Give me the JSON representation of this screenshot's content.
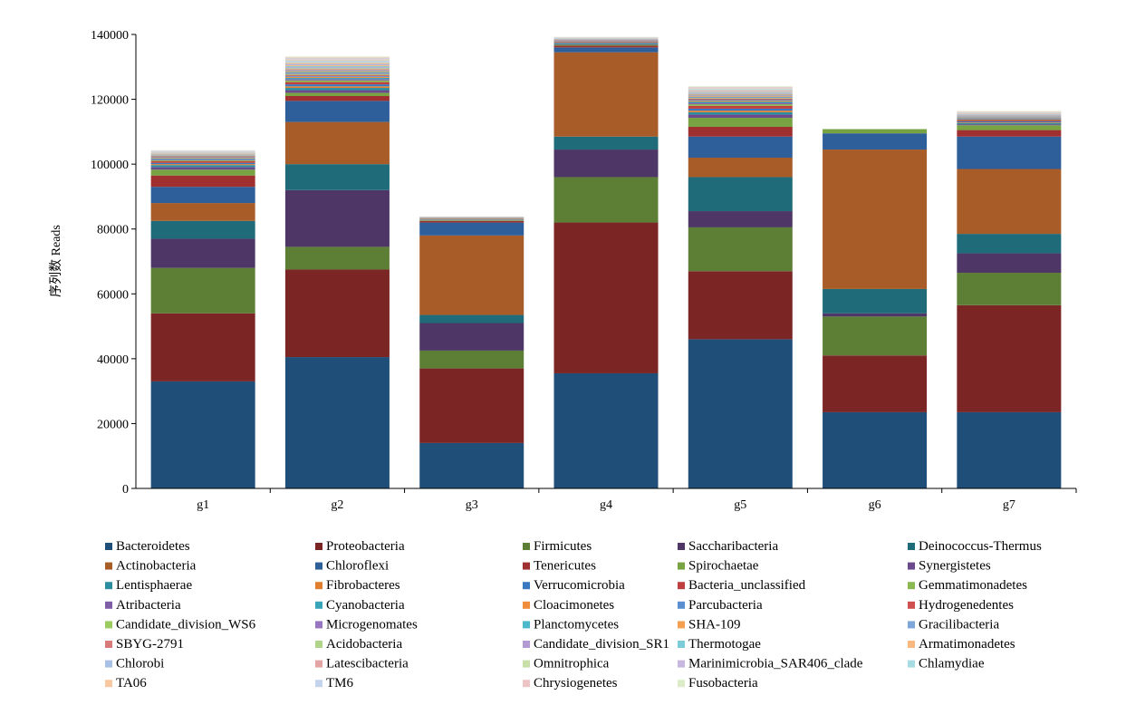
{
  "chart_data": {
    "type": "bar",
    "stacked": true,
    "ylabel": "序列数 Reads",
    "xlabel": "",
    "ylim": [
      0,
      140000
    ],
    "yticks": [
      "0",
      "20000",
      "40000",
      "60000",
      "80000",
      "100000",
      "120000",
      "140000"
    ],
    "categories": [
      "g1",
      "g2",
      "g3",
      "g4",
      "g5",
      "g6",
      "g7"
    ],
    "legend_position": "bottom",
    "series": [
      {
        "name": "Bacteroidetes",
        "color": "#1f4e79",
        "values": [
          33000,
          40500,
          14000,
          35500,
          46000,
          23500,
          23500
        ]
      },
      {
        "name": "Proteobacteria",
        "color": "#7b2525",
        "values": [
          21000,
          27000,
          23000,
          46500,
          21000,
          17500,
          33000
        ]
      },
      {
        "name": "Firmicutes",
        "color": "#5d7f35",
        "values": [
          14000,
          7000,
          5500,
          14000,
          13500,
          12000,
          10000
        ]
      },
      {
        "name": "Saccharibacteria",
        "color": "#4e3766",
        "values": [
          9000,
          17500,
          8500,
          8500,
          5000,
          1000,
          6000
        ]
      },
      {
        "name": "Deinococcus-Thermus",
        "color": "#1f6b7a",
        "values": [
          5500,
          8000,
          2500,
          4000,
          10500,
          7500,
          6000
        ]
      },
      {
        "name": "Actinobacteria",
        "color": "#a85c28",
        "values": [
          5500,
          13000,
          24500,
          26000,
          6000,
          43000,
          20000
        ]
      },
      {
        "name": "Chloroflexi",
        "color": "#2e5f9a",
        "values": [
          5000,
          6500,
          4000,
          1500,
          6500,
          5000,
          10000
        ]
      },
      {
        "name": "Tenericutes",
        "color": "#a03030",
        "values": [
          3500,
          1500,
          500,
          500,
          3000,
          0,
          2000
        ]
      },
      {
        "name": "Spirochaetae",
        "color": "#77a343",
        "values": [
          1800,
          1000,
          200,
          300,
          2800,
          1300,
          1500
        ]
      },
      {
        "name": "Synergistetes",
        "color": "#6a4a8c",
        "values": [
          800,
          800,
          100,
          200,
          1000,
          0,
          300
        ]
      },
      {
        "name": "Lentisphaerae",
        "color": "#2a8da0",
        "values": [
          600,
          700,
          100,
          200,
          700,
          0,
          400
        ]
      },
      {
        "name": "Fibrobacteres",
        "color": "#e0802e",
        "values": [
          300,
          500,
          50,
          100,
          500,
          0,
          200
        ]
      },
      {
        "name": "Verrucomicrobia",
        "color": "#3b78c2",
        "values": [
          400,
          600,
          100,
          200,
          600,
          0,
          300
        ]
      },
      {
        "name": "Bacteria_unclassified",
        "color": "#c04040",
        "values": [
          500,
          700,
          100,
          200,
          900,
          0,
          400
        ]
      },
      {
        "name": "Gemmatimonadetes",
        "color": "#8cb851",
        "values": [
          300,
          500,
          100,
          100,
          500,
          0,
          200
        ]
      },
      {
        "name": "Atribacteria",
        "color": "#7f5ea8",
        "values": [
          300,
          400,
          50,
          100,
          400,
          0,
          200
        ]
      },
      {
        "name": "Cyanobacteria",
        "color": "#39a4b8",
        "values": [
          300,
          400,
          50,
          100,
          400,
          0,
          200
        ]
      },
      {
        "name": "Cloacimonetes",
        "color": "#f08c3a",
        "values": [
          200,
          300,
          50,
          100,
          300,
          0,
          100
        ]
      },
      {
        "name": "Parcubacteria",
        "color": "#5a8fd0",
        "values": [
          200,
          300,
          50,
          100,
          300,
          0,
          100
        ]
      },
      {
        "name": "Hydrogenedentes",
        "color": "#d05050",
        "values": [
          200,
          300,
          50,
          100,
          300,
          0,
          100
        ]
      },
      {
        "name": "Candidate_division_WS6",
        "color": "#9ccb60",
        "values": [
          100,
          300,
          20,
          50,
          200,
          0,
          100
        ]
      },
      {
        "name": "Microgenomates",
        "color": "#9676c0",
        "values": [
          100,
          300,
          20,
          50,
          200,
          0,
          100
        ]
      },
      {
        "name": "Planctomycetes",
        "color": "#4cb8cc",
        "values": [
          100,
          300,
          20,
          50,
          200,
          0,
          100
        ]
      },
      {
        "name": "SHA-109",
        "color": "#f5a050",
        "values": [
          100,
          300,
          20,
          50,
          200,
          0,
          100
        ]
      },
      {
        "name": "Gracilibacteria",
        "color": "#7fa6d8",
        "values": [
          100,
          300,
          20,
          50,
          200,
          0,
          100
        ]
      },
      {
        "name": "SBYG-2791",
        "color": "#d87a7a",
        "values": [
          100,
          300,
          20,
          50,
          200,
          0,
          100
        ]
      },
      {
        "name": "Acidobacteria",
        "color": "#b0d488",
        "values": [
          100,
          300,
          20,
          50,
          200,
          0,
          100
        ]
      },
      {
        "name": "Candidate_division_SR1",
        "color": "#b39ad4",
        "values": [
          100,
          300,
          20,
          50,
          200,
          0,
          100
        ]
      },
      {
        "name": "Thermotogae",
        "color": "#7ccbd8",
        "values": [
          100,
          300,
          20,
          50,
          200,
          0,
          100
        ]
      },
      {
        "name": "Armatimonadetes",
        "color": "#f8b880",
        "values": [
          100,
          300,
          20,
          50,
          200,
          0,
          100
        ]
      },
      {
        "name": "Chlorobi",
        "color": "#a8c0e4",
        "values": [
          100,
          300,
          20,
          50,
          200,
          0,
          100
        ]
      },
      {
        "name": "Latescibacteria",
        "color": "#e4a4a4",
        "values": [
          100,
          300,
          20,
          50,
          200,
          0,
          100
        ]
      },
      {
        "name": "Omnitrophica",
        "color": "#c8e0a8",
        "values": [
          100,
          300,
          20,
          50,
          200,
          0,
          100
        ]
      },
      {
        "name": "Marinimicrobia_SAR406_clade",
        "color": "#c8b8e0",
        "values": [
          100,
          300,
          20,
          50,
          200,
          0,
          100
        ]
      },
      {
        "name": "Chlamydiae",
        "color": "#a8dce4",
        "values": [
          100,
          300,
          20,
          50,
          200,
          0,
          100
        ]
      },
      {
        "name": "TA06",
        "color": "#f8c8a0",
        "values": [
          100,
          300,
          20,
          50,
          200,
          0,
          100
        ]
      },
      {
        "name": "TM6",
        "color": "#c4d4ec",
        "values": [
          100,
          300,
          20,
          50,
          200,
          0,
          100
        ]
      },
      {
        "name": "Chrysiogenetes",
        "color": "#ecc4c4",
        "values": [
          100,
          300,
          20,
          50,
          200,
          0,
          100
        ]
      },
      {
        "name": "Fusobacteria",
        "color": "#dcecc8",
        "values": [
          100,
          300,
          20,
          50,
          200,
          0,
          100
        ]
      }
    ]
  }
}
